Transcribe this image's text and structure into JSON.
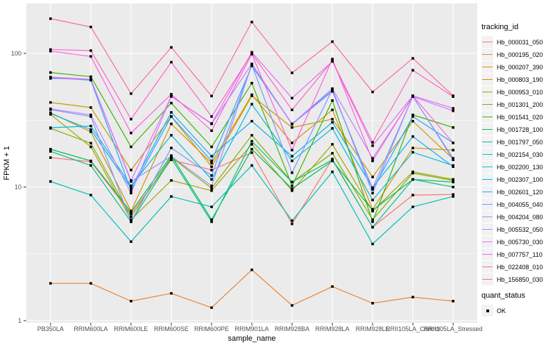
{
  "axes": {
    "y_title": "FPKM + 1",
    "x_title": "sample_name"
  },
  "legend": {
    "tracking_title": "tracking_id",
    "quant_title": "quant_status",
    "quant_items": [
      {
        "label": "OK",
        "marker": "black-square"
      }
    ]
  },
  "chart_data": {
    "type": "line",
    "log_y": true,
    "ylim": [
      1,
      240
    ],
    "grid": "on",
    "legend_position": "right",
    "title": "",
    "xlabel": "sample_name",
    "ylabel": "FPKM + 1",
    "y_ticks": [
      {
        "value": 100,
        "label": "100"
      },
      {
        "value": 10,
        "label": "10"
      },
      {
        "value": 1,
        "label": "1"
      }
    ],
    "y_minor": [
      3.162,
      31.623
    ],
    "categories": [
      "PB350LA",
      "RRIM600LA",
      "RRIM600LE",
      "RRIM600SE",
      "RRIM600PE",
      "RRIM901LA",
      "RRIM928BA",
      "RRIM928LA",
      "RRIM928LE",
      "RRII105LA_Control",
      "RRII105LA_Stressed"
    ],
    "point_marker": "black-square",
    "layout": {
      "panel_bg": "#EBEBEB",
      "grid_color": "#FFFFFF",
      "point_color": "#000000",
      "tick_mark_color": "#333333",
      "tick_label_color": "#4D4D4D"
    },
    "series": [
      {
        "name": "Hb_000031_050",
        "color": "#F8766D",
        "values": [
          16.6,
          15.5,
          6.3,
          16.0,
          13.4,
          18.1,
          5.3,
          16.2,
          5.0,
          8.7,
          8.8
        ]
      },
      {
        "name": "Hb_000195_020",
        "color": "#EA8331",
        "values": [
          1.9,
          1.9,
          1.4,
          1.6,
          1.25,
          2.4,
          1.3,
          1.8,
          1.35,
          1.5,
          1.4
        ]
      },
      {
        "name": "Hb_000207_390",
        "color": "#D89000",
        "values": [
          36.0,
          25.9,
          6.6,
          29.7,
          15.1,
          49.1,
          21.4,
          37.8,
          6.8,
          19.6,
          18.9
        ]
      },
      {
        "name": "Hb_000803_190",
        "color": "#C09B00",
        "values": [
          43.0,
          39.4,
          13.4,
          33.7,
          14.2,
          48.2,
          27.9,
          32.2,
          11.9,
          31.1,
          16.2
        ]
      },
      {
        "name": "Hb_000953_010",
        "color": "#A3A500",
        "values": [
          35.0,
          20.0,
          5.7,
          11.2,
          9.4,
          20.9,
          9.4,
          20.9,
          6.6,
          13.0,
          11.4
        ]
      },
      {
        "name": "Hb_001301_200",
        "color": "#7CAE00",
        "values": [
          27.5,
          21.3,
          6.0,
          16.7,
          9.8,
          24.4,
          10.9,
          17.9,
          5.7,
          12.7,
          11.2
        ]
      },
      {
        "name": "Hb_001541_020",
        "color": "#39B600",
        "values": [
          72.0,
          67.0,
          20.0,
          42.5,
          20.0,
          59.9,
          10.2,
          44.4,
          5.5,
          34.7,
          27.9
        ]
      },
      {
        "name": "Hb_001728_100",
        "color": "#00BB4E",
        "values": [
          19.2,
          15.7,
          6.5,
          17.2,
          5.7,
          19.2,
          9.7,
          15.7,
          6.7,
          11.4,
          10.9
        ]
      },
      {
        "name": "Hb_001797_050",
        "color": "#00C087",
        "values": [
          18.5,
          14.5,
          5.5,
          16.4,
          5.5,
          22.0,
          10.9,
          16.0,
          5.0,
          11.4,
          10.0
        ]
      },
      {
        "name": "Hb_002154_030",
        "color": "#00C0B8",
        "values": [
          11.0,
          8.7,
          3.9,
          8.5,
          7.1,
          14.5,
          5.6,
          13.0,
          3.75,
          7.1,
          8.5
        ]
      },
      {
        "name": "Hb_002200_130",
        "color": "#00BCD8",
        "values": [
          27.8,
          28.6,
          10.2,
          24.4,
          11.4,
          41.7,
          15.7,
          27.5,
          8.0,
          18.2,
          14.5
        ]
      },
      {
        "name": "Hb_002307_100",
        "color": "#00B3F2",
        "values": [
          35.5,
          26.9,
          9.8,
          36.2,
          17.0,
          31.1,
          17.0,
          30.5,
          9.9,
          23.9,
          14.2
        ]
      },
      {
        "name": "Hb_002601_120",
        "color": "#29A3FF",
        "values": [
          66.0,
          63.0,
          9.4,
          33.7,
          15.7,
          80.7,
          29.7,
          53.0,
          9.6,
          33.7,
          21.4
        ]
      },
      {
        "name": "Hb_004055_040",
        "color": "#7C96FF",
        "values": [
          38.0,
          33.7,
          5.5,
          19.6,
          12.2,
          82.3,
          12.8,
          54.0,
          9.0,
          48.0,
          16.0
        ]
      },
      {
        "name": "Hb_004204_080",
        "color": "#9590FF",
        "values": [
          65.0,
          64.0,
          11.0,
          17.0,
          10.2,
          83.0,
          29.5,
          52.0,
          9.8,
          47.5,
          16.4
        ]
      },
      {
        "name": "Hb_005532_050",
        "color": "#C77CFF",
        "values": [
          38.5,
          34.7,
          9.0,
          47.7,
          29.7,
          83.5,
          29.7,
          54.5,
          16.4,
          47.5,
          37.2
        ]
      },
      {
        "name": "Hb_005730_030",
        "color": "#E76BF3",
        "values": [
          66.5,
          64.0,
          11.2,
          47.7,
          29.9,
          102.0,
          46.3,
          87.2,
          20.4,
          48.2,
          38.8
        ]
      },
      {
        "name": "Hb_007757_110",
        "color": "#FA62DB",
        "values": [
          104.0,
          95.0,
          25.4,
          49.5,
          26.4,
          98.8,
          18.9,
          90.8,
          15.7,
          48.2,
          21.4
        ]
      },
      {
        "name": "Hb_022408_010",
        "color": "#FF61C9",
        "values": [
          107.0,
          105.0,
          32.2,
          86.0,
          33.7,
          100.0,
          37.8,
          88.0,
          21.6,
          74.9,
          47.5
        ]
      },
      {
        "name": "Hb_156850_030",
        "color": "#FF689E",
        "values": [
          182.0,
          158.0,
          50.0,
          111.0,
          48.0,
          172.0,
          71.5,
          122.5,
          51.5,
          91.9,
          48.2
        ]
      }
    ]
  }
}
